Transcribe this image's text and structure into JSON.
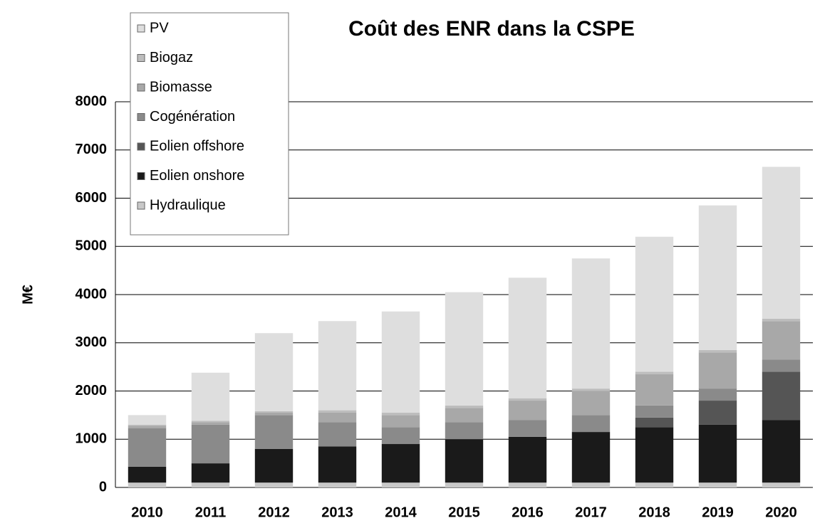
{
  "chart_data": {
    "type": "bar",
    "stacked": true,
    "title": "Coût des ENR dans la CSPE",
    "y_label": "M€",
    "categories": [
      "2010",
      "2011",
      "2012",
      "2013",
      "2014",
      "2015",
      "2016",
      "2017",
      "2018",
      "2019",
      "2020"
    ],
    "series": [
      {
        "name": "Hydraulique",
        "color": "#c8c8c8",
        "values": [
          100,
          100,
          100,
          100,
          100,
          100,
          100,
          100,
          100,
          100,
          100
        ]
      },
      {
        "name": "Eolien onshore",
        "color": "#1a1a1a",
        "values": [
          330,
          400,
          700,
          750,
          800,
          900,
          950,
          1050,
          1150,
          1200,
          1300
        ]
      },
      {
        "name": "Eolien offshore",
        "color": "#555555",
        "values": [
          0,
          0,
          0,
          0,
          0,
          0,
          0,
          0,
          200,
          500,
          1000
        ]
      },
      {
        "name": "Cogénération",
        "color": "#8a8a8a",
        "values": [
          800,
          800,
          700,
          500,
          350,
          350,
          350,
          350,
          250,
          250,
          250
        ]
      },
      {
        "name": "Biomasse",
        "color": "#a8a8a8",
        "values": [
          50,
          50,
          50,
          200,
          250,
          300,
          400,
          500,
          650,
          750,
          800
        ]
      },
      {
        "name": "Biogaz",
        "color": "#bdbdbd",
        "values": [
          20,
          30,
          30,
          50,
          50,
          50,
          50,
          50,
          50,
          50,
          50
        ]
      },
      {
        "name": "PV",
        "color": "#dedede",
        "values": [
          200,
          1000,
          1620,
          1850,
          2100,
          2350,
          2500,
          2700,
          2800,
          3000,
          3150
        ]
      }
    ],
    "ylim": [
      0,
      8000
    ],
    "yticks": [
      0,
      1000,
      2000,
      3000,
      4000,
      5000,
      6000,
      7000,
      8000
    ],
    "grid": true,
    "legend": "top-left"
  }
}
